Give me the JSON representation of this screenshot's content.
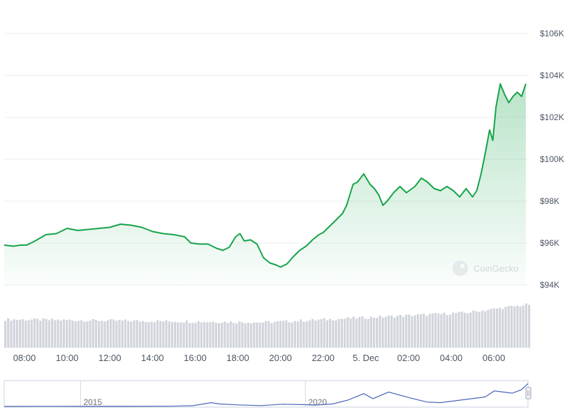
{
  "watermark": {
    "text": "CoinGecko"
  },
  "colors": {
    "line": "#16a34a",
    "fill_top": "#16a34a",
    "grid": "#ebedf0",
    "axis_text": "#4b5563",
    "volume": "#d1d5db",
    "navigator_line": "#4a64b6",
    "navigator_border": "#c8d0e0"
  },
  "chart_data": [
    {
      "type": "area",
      "title": "",
      "xlabel": "",
      "ylabel": "",
      "x_tick_labels": [
        "08:00",
        "10:00",
        "12:00",
        "14:00",
        "16:00",
        "18:00",
        "20:00",
        "22:00",
        "5. Dec",
        "02:00",
        "04:00",
        "06:00"
      ],
      "x_tick_hours": [
        8,
        10,
        12,
        14,
        16,
        18,
        20,
        22,
        24,
        26,
        28,
        30
      ],
      "x_range_hours": [
        7.05,
        31.6
      ],
      "y_tick_labels": [
        "$94K",
        "$96K",
        "$98K",
        "$100K",
        "$102K",
        "$104K",
        "$106K"
      ],
      "y_tick_values": [
        94000,
        96000,
        98000,
        100000,
        102000,
        104000,
        106000
      ],
      "ylim": [
        94000,
        106000
      ],
      "grid": "horizontal",
      "series": [
        {
          "x_hours": [
            7.05,
            7.5,
            7.8,
            8.1,
            8.5,
            9.0,
            9.5,
            10.0,
            10.5,
            11.0,
            11.5,
            12.0,
            12.5,
            13.0,
            13.5,
            14.0,
            14.5,
            15.0,
            15.5,
            15.8,
            16.2,
            16.6,
            17.0,
            17.3,
            17.6,
            17.9,
            18.1,
            18.3,
            18.6,
            18.9,
            19.2,
            19.5,
            19.8,
            20.0,
            20.3,
            20.6,
            20.9,
            21.2,
            21.5,
            21.8,
            22.0,
            22.3,
            22.6,
            22.9,
            23.1,
            23.4,
            23.6,
            23.9,
            24.2,
            24.4,
            24.6,
            24.8,
            25.0,
            25.3,
            25.6,
            25.9,
            26.3,
            26.6,
            26.9,
            27.2,
            27.5,
            27.8,
            28.1,
            28.4,
            28.7,
            29.0,
            29.2,
            29.4,
            29.6,
            29.8,
            29.95,
            30.1,
            30.3,
            30.5,
            30.7,
            30.9,
            31.1,
            31.3,
            31.5
          ],
          "y": [
            95900,
            95850,
            95900,
            95900,
            96100,
            96400,
            96450,
            96700,
            96600,
            96650,
            96700,
            96750,
            96900,
            96850,
            96750,
            96550,
            96450,
            96400,
            96300,
            96000,
            95950,
            95950,
            95750,
            95650,
            95800,
            96300,
            96450,
            96100,
            96150,
            95950,
            95300,
            95050,
            94950,
            94850,
            95000,
            95350,
            95650,
            95850,
            96150,
            96400,
            96500,
            96800,
            97100,
            97400,
            97800,
            98800,
            98900,
            99300,
            98800,
            98600,
            98300,
            97800,
            98000,
            98400,
            98700,
            98400,
            98700,
            99100,
            98900,
            98600,
            98500,
            98700,
            98500,
            98200,
            98600,
            98200,
            98500,
            99300,
            100300,
            101400,
            100900,
            102500,
            103600,
            103100,
            102700,
            103000,
            103200,
            103000,
            103600
          ]
        }
      ]
    },
    {
      "type": "bar",
      "title": "",
      "description_series": "volume",
      "x_range_hours": [
        7.05,
        31.6
      ],
      "bar_count": 180,
      "values_relative": {
        "start": 0.58,
        "mid": 0.52,
        "end": 0.78
      }
    },
    {
      "type": "line",
      "title": "",
      "x_tick_labels": [
        "2015",
        "2020"
      ],
      "x_tick_years": [
        2015,
        2020
      ],
      "x_range_years": [
        2013.3,
        2024.95
      ],
      "ylim": [
        0,
        104000
      ],
      "series": [
        {
          "x_years": [
            2013.3,
            2014.0,
            2014.5,
            2015.0,
            2016.0,
            2017.0,
            2017.5,
            2017.9,
            2018.1,
            2018.5,
            2019.0,
            2019.5,
            2020.0,
            2020.2,
            2020.6,
            2020.95,
            2021.3,
            2021.5,
            2021.85,
            2022.3,
            2022.7,
            2023.0,
            2023.5,
            2024.0,
            2024.2,
            2024.6,
            2024.8,
            2024.95
          ],
          "y": [
            100,
            500,
            600,
            250,
            450,
            1000,
            3500,
            17000,
            11000,
            7000,
            3800,
            10000,
            8000,
            6000,
            11000,
            29000,
            58000,
            35000,
            65000,
            40000,
            20000,
            17000,
            30000,
            43000,
            70000,
            60000,
            75000,
            103000
          ]
        }
      ]
    }
  ]
}
